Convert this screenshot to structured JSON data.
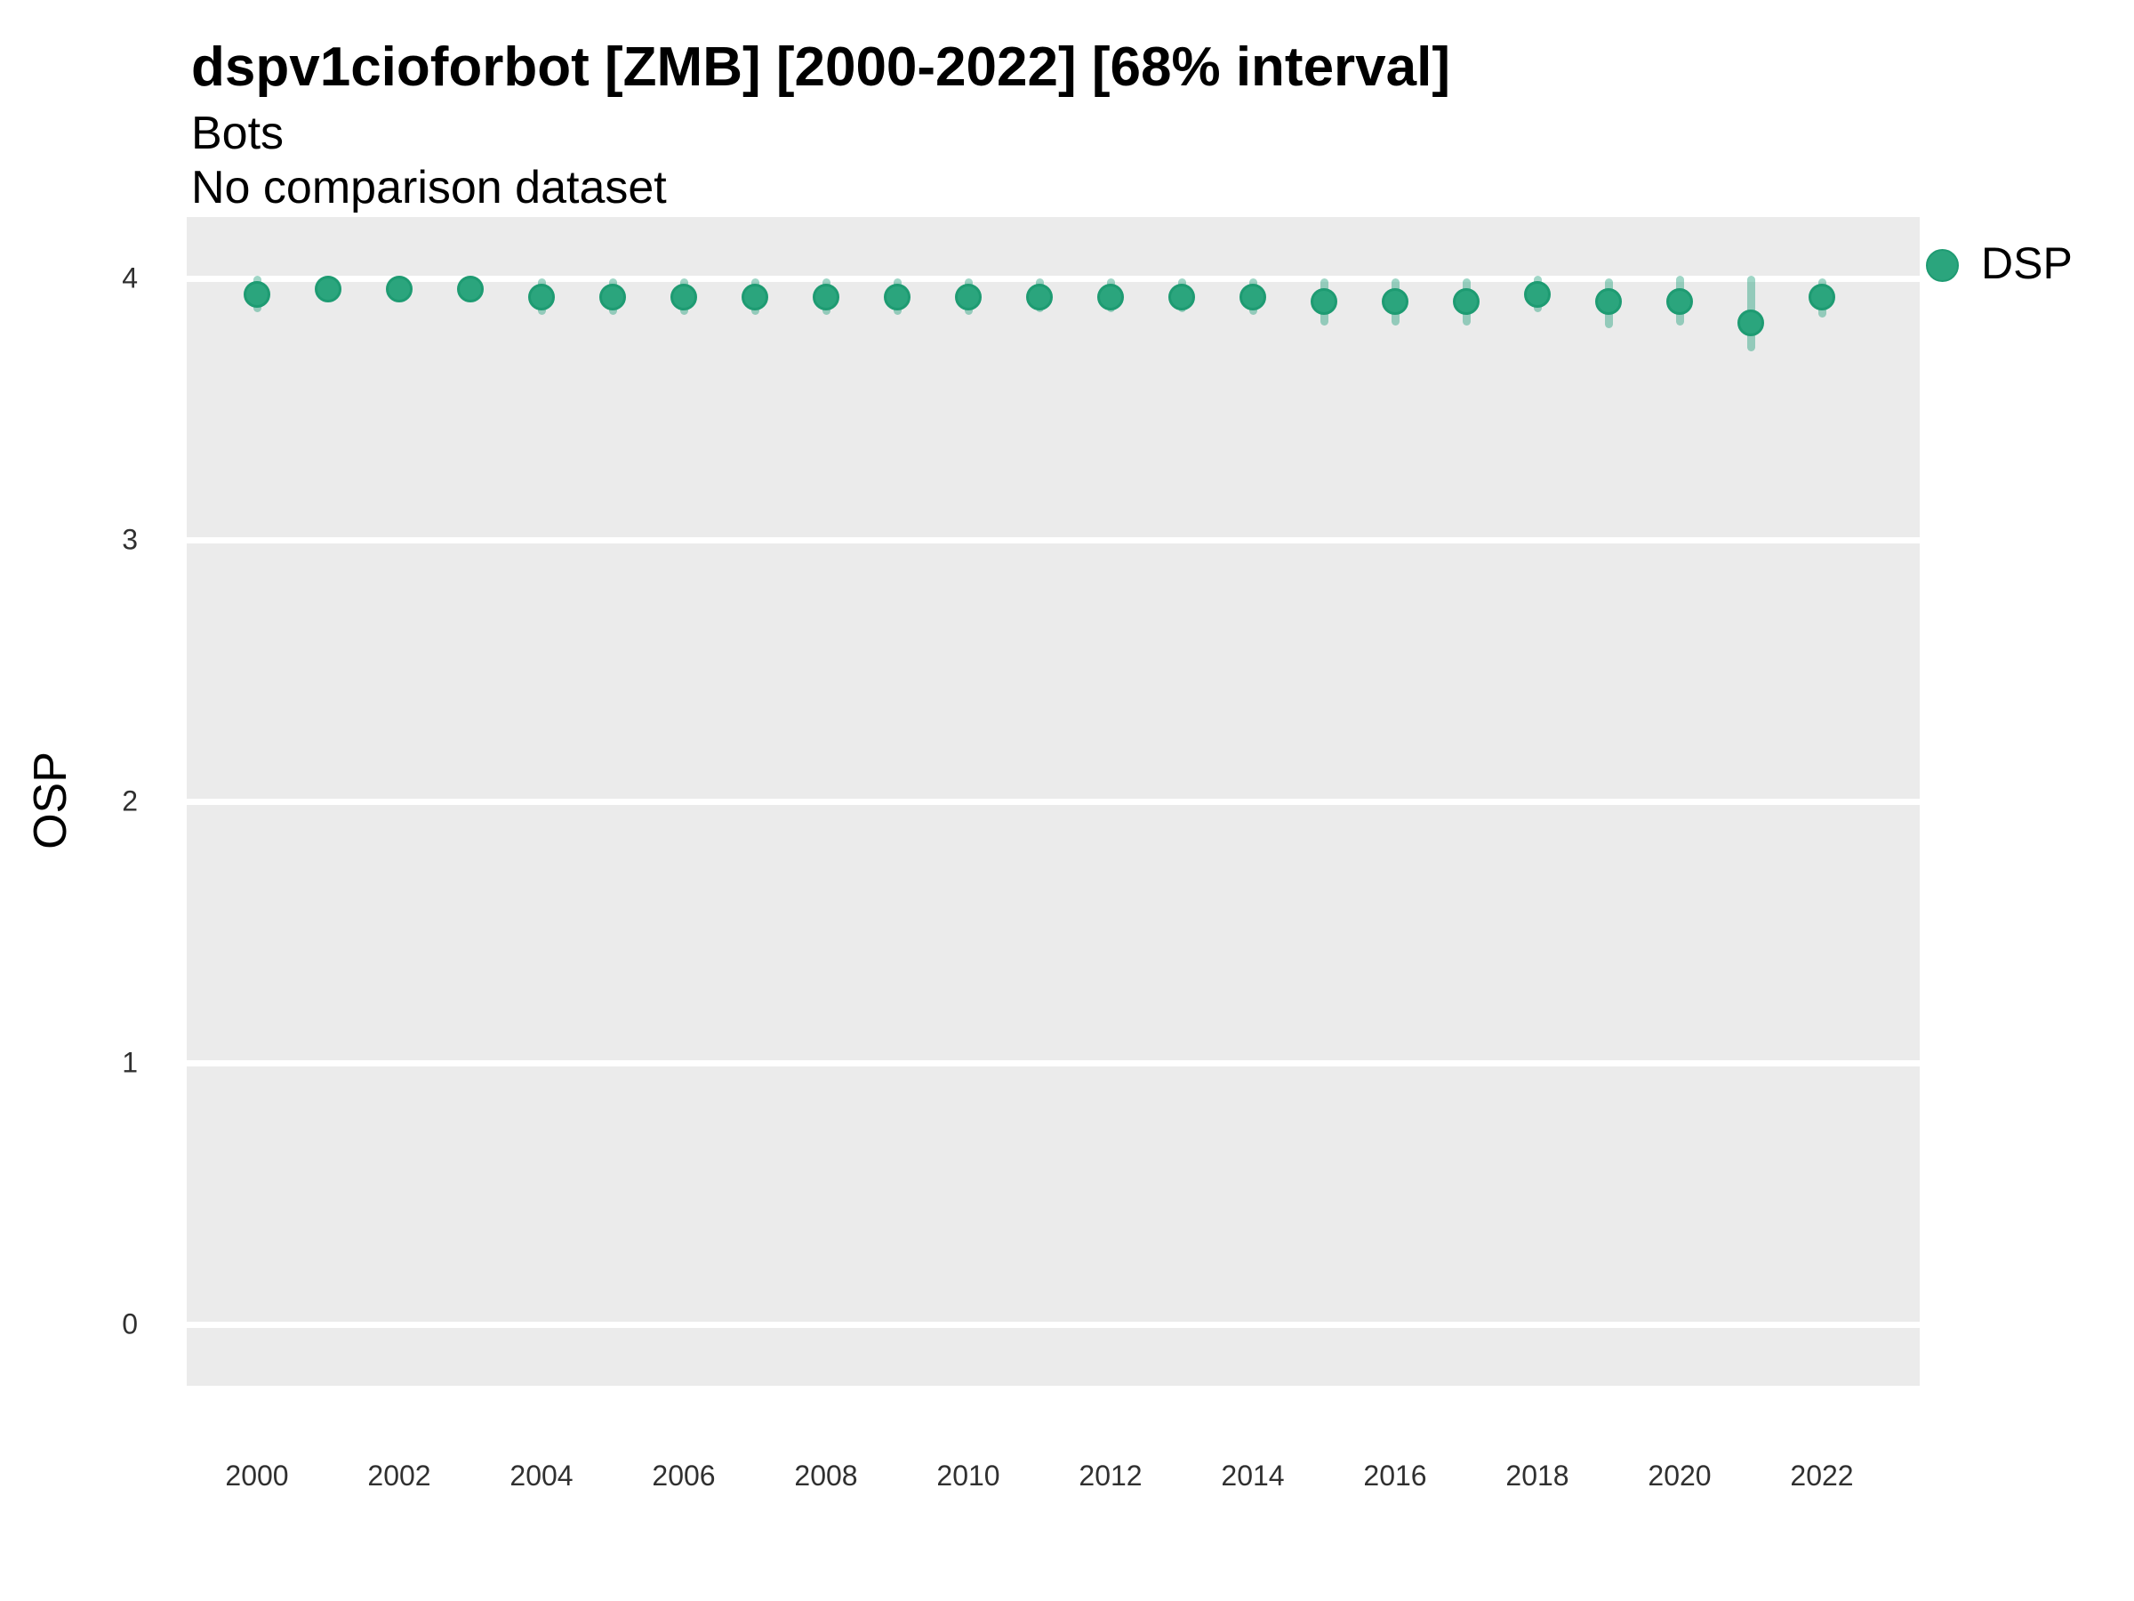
{
  "header": {
    "title": "dspv1cioforbot [ZMB] [2000-2022] [68% interval]",
    "subtitle": "Bots",
    "comparison_note": "No comparison dataset"
  },
  "colors": {
    "panel_bg": "#ebebeb",
    "gridline": "#ffffff",
    "point_fill": "#2ba57d",
    "point_border": "#1e9b72",
    "error_bar": "rgba(27,158,119,0.42)",
    "tick_label": "#303030",
    "text": "#000000"
  },
  "legend": {
    "position": "right",
    "entries": [
      {
        "label": "DSP",
        "marker": "circle-icon"
      }
    ]
  },
  "chart_data": {
    "type": "scatter",
    "title": "dspv1cioforbot [ZMB] [2000-2022] [68% interval]",
    "subtitle": "Bots",
    "annotation": "No comparison dataset",
    "interval": "68%",
    "xlabel": "",
    "ylabel": "OSP",
    "ylim": [
      0,
      4
    ],
    "grid": "major-horizontal-only",
    "legend_position": "right",
    "y_ticks": [
      0,
      1,
      2,
      3,
      4
    ],
    "x_ticks": [
      2000,
      2002,
      2004,
      2006,
      2008,
      2010,
      2012,
      2014,
      2016,
      2018,
      2020,
      2022
    ],
    "series": [
      {
        "name": "DSP",
        "x": [
          2000,
          2001,
          2002,
          2003,
          2004,
          2005,
          2006,
          2007,
          2008,
          2009,
          2010,
          2011,
          2012,
          2013,
          2014,
          2015,
          2016,
          2017,
          2018,
          2019,
          2020,
          2021,
          2022
        ],
        "y": [
          3.94,
          3.96,
          3.96,
          3.96,
          3.93,
          3.93,
          3.93,
          3.93,
          3.93,
          3.93,
          3.93,
          3.93,
          3.93,
          3.93,
          3.93,
          3.91,
          3.91,
          3.91,
          3.94,
          3.91,
          3.91,
          3.83,
          3.93
        ],
        "y_lo": [
          3.87,
          3.91,
          3.91,
          3.92,
          3.86,
          3.86,
          3.86,
          3.86,
          3.86,
          3.86,
          3.86,
          3.87,
          3.87,
          3.87,
          3.86,
          3.82,
          3.82,
          3.82,
          3.87,
          3.81,
          3.82,
          3.72,
          3.85
        ],
        "y_hi": [
          4.01,
          4.01,
          4.01,
          4.01,
          4.0,
          4.0,
          4.0,
          4.0,
          4.0,
          4.0,
          4.0,
          4.0,
          4.0,
          4.0,
          4.0,
          4.0,
          4.0,
          4.0,
          4.01,
          4.0,
          4.01,
          4.01,
          4.0
        ]
      }
    ]
  }
}
